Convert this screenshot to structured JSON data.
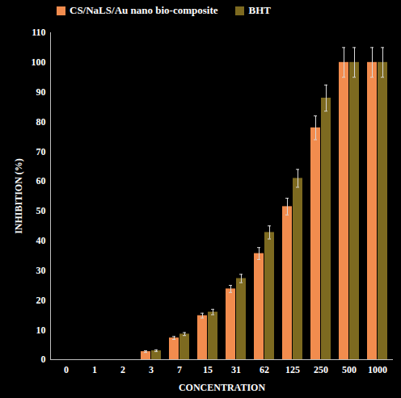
{
  "chart_data": {
    "type": "bar",
    "categories": [
      "0",
      "1",
      "2",
      "3",
      "7",
      "15",
      "31",
      "62",
      "125",
      "250",
      "500",
      "1000"
    ],
    "series": [
      {
        "name": "CS/NaLS/Au nano bio-composite",
        "color": "#f28c4e",
        "values": [
          0,
          0,
          0,
          2.7,
          7.3,
          14.8,
          23.8,
          35.7,
          51.5,
          78,
          100,
          100
        ],
        "errors": [
          0,
          0,
          0,
          0.3,
          0.5,
          0.8,
          1.2,
          2,
          2.8,
          4,
          5,
          5
        ]
      },
      {
        "name": "BHT",
        "color": "#7d6a20",
        "values": [
          0,
          0,
          0,
          3,
          8.6,
          16,
          27.3,
          42.8,
          61,
          88,
          100,
          100
        ],
        "errors": [
          0,
          0,
          0,
          0.3,
          0.5,
          0.9,
          1.4,
          2.2,
          3,
          4.4,
          5,
          5
        ]
      }
    ],
    "x_label": "CONCENTRATION",
    "y_label": "INHIBITION (%)",
    "ylim": [
      0,
      110
    ],
    "yticks": [
      0,
      10,
      20,
      30,
      40,
      50,
      60,
      70,
      80,
      90,
      100,
      110
    ],
    "grid": false,
    "legend": "top"
  }
}
